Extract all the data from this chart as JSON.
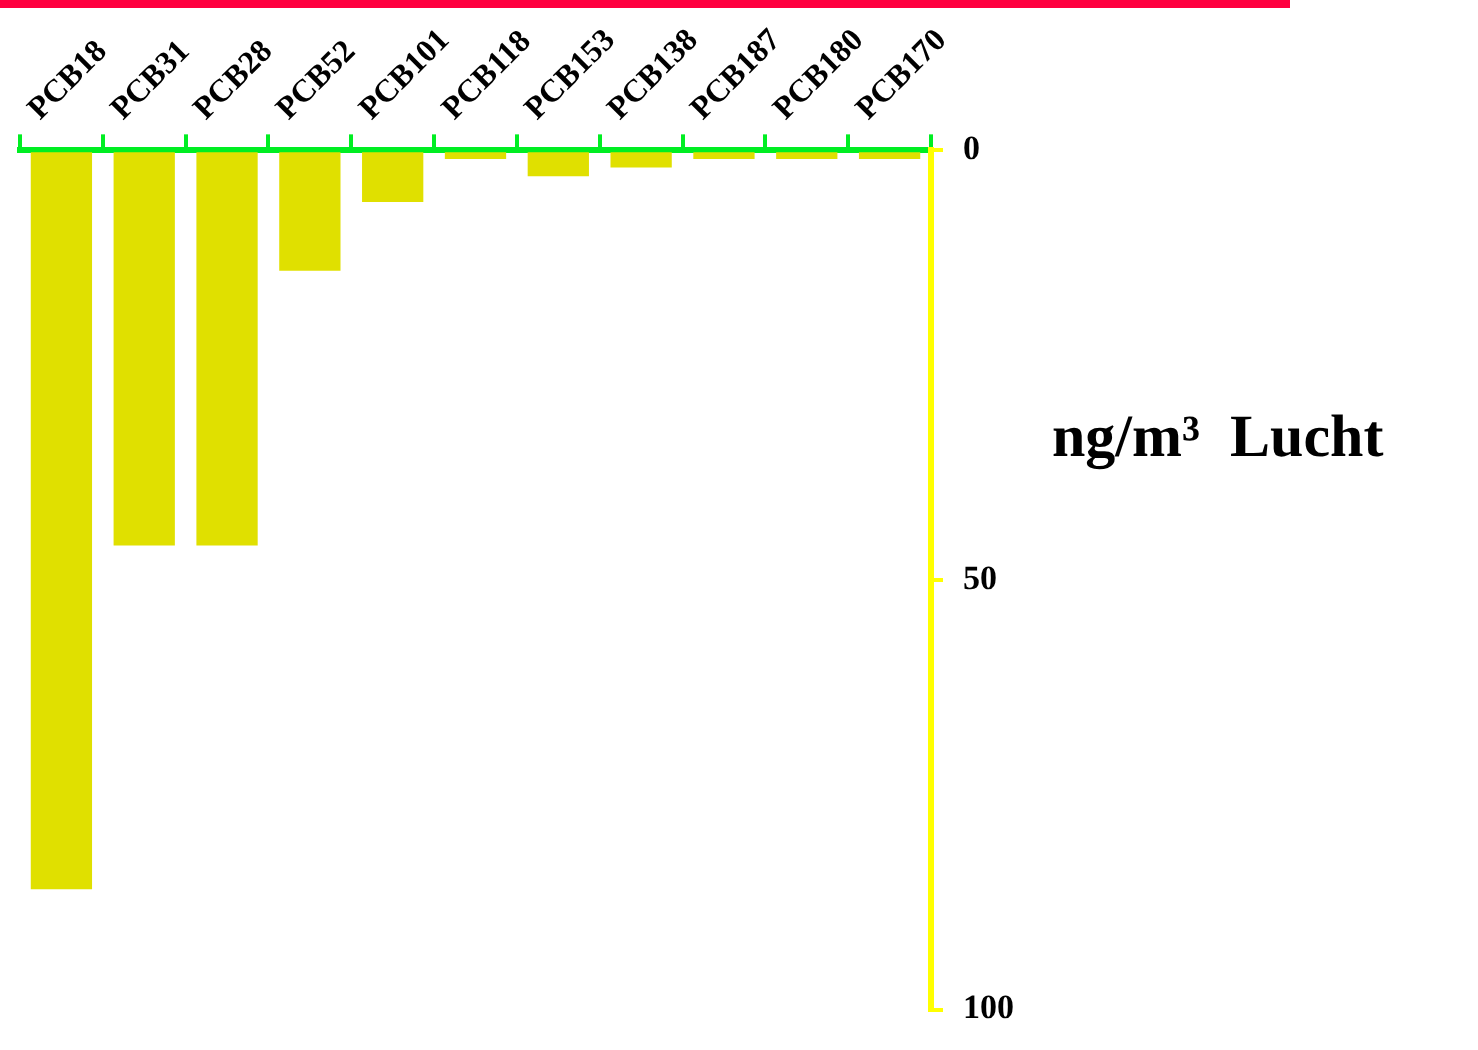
{
  "chart_data": {
    "type": "bar",
    "ylabel": "ng/m³  Lucht",
    "categories": [
      "PCB18",
      "PCB31",
      "PCB28",
      "PCB52",
      "PCB101",
      "PCB118",
      "PCB153",
      "PCB138",
      "PCB187",
      "PCB180",
      "PCB170"
    ],
    "values": [
      86,
      46,
      46,
      14,
      6,
      1,
      3,
      2,
      1,
      1,
      1
    ],
    "color": "#e0e000",
    "ylim": [
      100,
      0
    ],
    "yticks": [
      0,
      50,
      100
    ]
  }
}
